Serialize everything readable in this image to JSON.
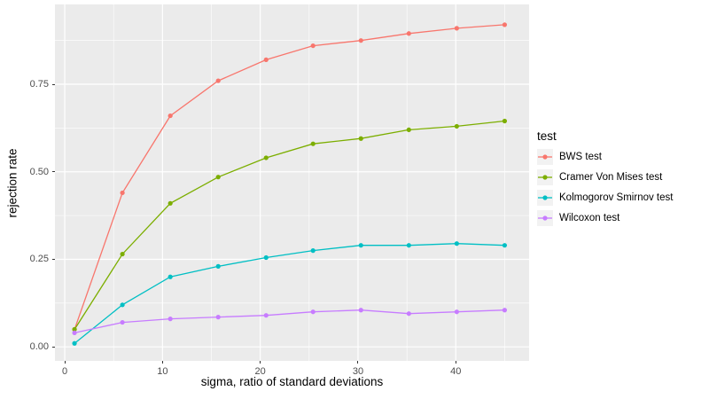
{
  "figure": {
    "background": "#FFFFFF",
    "panel_background": "#EBEBEB",
    "grid_color": "#FFFFFF",
    "tick_mark_color": "#333333",
    "tick_label_color": "#4D4D4D",
    "legend_key_background": "#F2F2F2"
  },
  "chart_data": {
    "type": "line",
    "title": "",
    "xlabel": "sigma, ratio of standard deviations",
    "ylabel": "rejection rate",
    "x": [
      1,
      5.9,
      10.8,
      15.7,
      20.6,
      25.4,
      30.3,
      35.2,
      40.1,
      45
    ],
    "series": [
      {
        "name": "BWS test",
        "color": "#F8766D",
        "values": [
          0.05,
          0.44,
          0.66,
          0.76,
          0.82,
          0.86,
          0.875,
          0.895,
          0.91,
          0.92
        ]
      },
      {
        "name": "Cramer Von Mises test",
        "color": "#7CAE00",
        "values": [
          0.05,
          0.265,
          0.41,
          0.485,
          0.54,
          0.58,
          0.595,
          0.62,
          0.63,
          0.645
        ]
      },
      {
        "name": "Kolmogorov Smirnov test",
        "color": "#00BFC4",
        "values": [
          0.01,
          0.12,
          0.2,
          0.23,
          0.255,
          0.275,
          0.29,
          0.29,
          0.295,
          0.29
        ]
      },
      {
        "name": "Wilcoxon test",
        "color": "#C77CFF",
        "values": [
          0.04,
          0.07,
          0.08,
          0.085,
          0.09,
          0.1,
          0.105,
          0.095,
          0.1,
          0.105
        ]
      }
    ],
    "x_ticks": {
      "major": [
        0,
        10,
        20,
        30,
        40
      ],
      "minor": [
        5,
        15,
        25,
        35,
        45
      ],
      "labels": [
        "0",
        "10",
        "20",
        "30",
        "40"
      ]
    },
    "y_ticks": {
      "major": [
        0,
        0.25,
        0.5,
        0.75
      ],
      "minor": [
        0.125,
        0.375,
        0.625,
        0.875
      ],
      "labels": [
        "0.00",
        "0.25",
        "0.50",
        "0.75"
      ]
    },
    "xlim": [
      -1,
      47.5
    ],
    "ylim": [
      -0.04,
      0.978
    ],
    "grid": true,
    "marker": "circle",
    "legend_position": "right",
    "legend_title": "test"
  }
}
